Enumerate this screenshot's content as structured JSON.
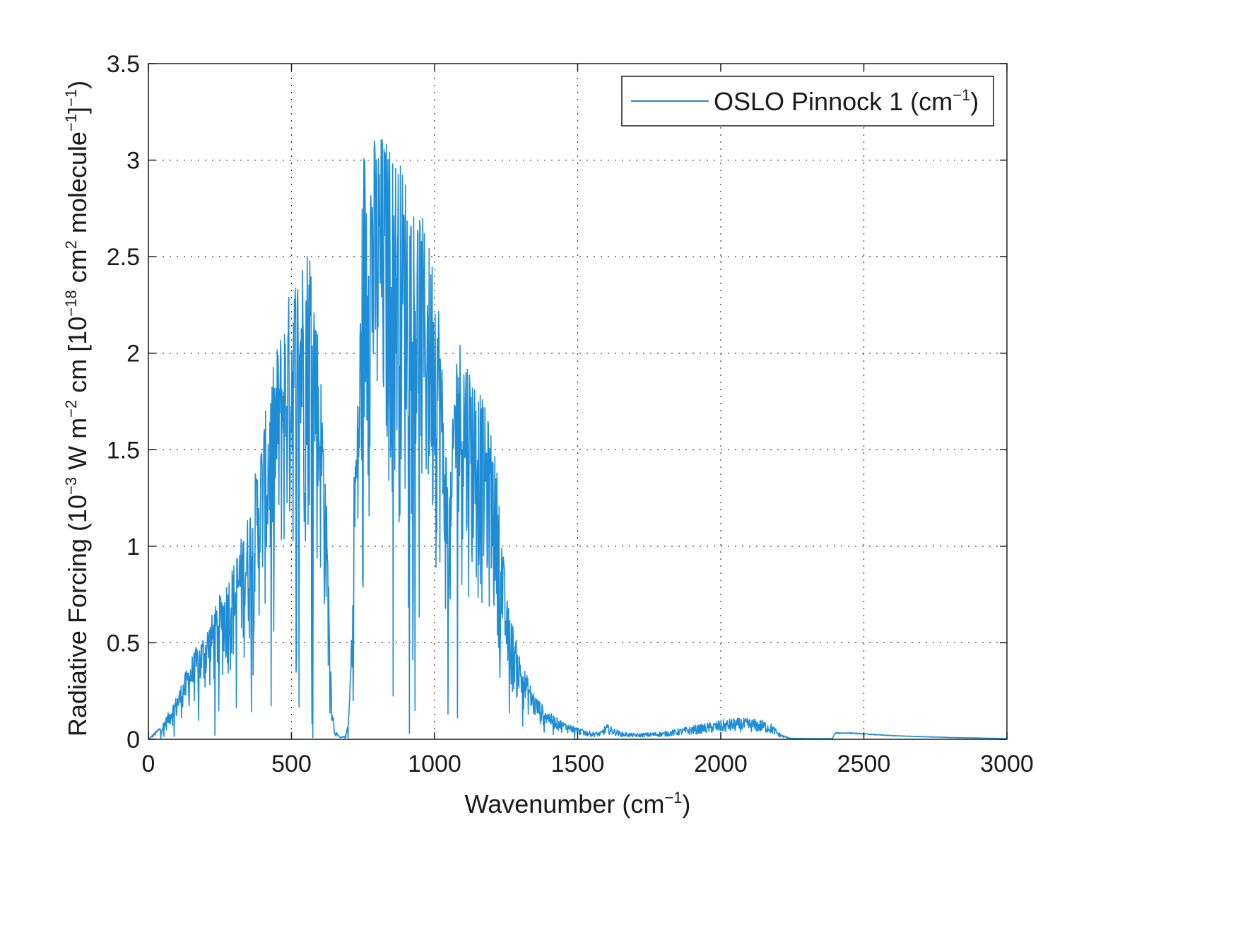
{
  "chart_data": {
    "type": "line",
    "xlabel": {
      "main": "Wavenumber (cm",
      "sup": "−1",
      "tail": ")"
    },
    "ylabel": {
      "parts": [
        {
          "t": "Radiative Forcing (10",
          "sup": false
        },
        {
          "t": "−3",
          "sup": true
        },
        {
          "t": " W m",
          "sup": false
        },
        {
          "t": "−2",
          "sup": true
        },
        {
          "t": " cm [10",
          "sup": false
        },
        {
          "t": "−18",
          "sup": true
        },
        {
          "t": " cm",
          "sup": false
        },
        {
          "t": "2",
          "sup": true
        },
        {
          "t": " molecule",
          "sup": false
        },
        {
          "t": "−1",
          "sup": true
        },
        {
          "t": "]",
          "sup": false
        },
        {
          "t": "−1",
          "sup": true
        },
        {
          "t": ")",
          "sup": false
        }
      ]
    },
    "xlim": [
      0,
      3000
    ],
    "ylim": [
      0,
      3.5
    ],
    "xticks": [
      0,
      500,
      1000,
      1500,
      2000,
      2500,
      3000
    ],
    "xtick_labels": [
      "0",
      "500",
      "1000",
      "1500",
      "2000",
      "2500",
      "3000"
    ],
    "yticks": [
      0,
      0.5,
      1,
      1.5,
      2,
      2.5,
      3,
      3.5
    ],
    "ytick_labels": [
      "0",
      "0.5",
      "1",
      "1.5",
      "2",
      "2.5",
      "3",
      "3.5"
    ],
    "grid": true,
    "legend_position": "top-right",
    "series": [
      {
        "name": {
          "main": "OSLO Pinnock 1 (cm",
          "sup": "−1",
          "tail": ")"
        },
        "color": "#1f8dd6",
        "envelope_x": [
          0,
          50,
          100,
          150,
          200,
          250,
          300,
          350,
          400,
          450,
          500,
          550,
          570,
          590,
          610,
          620,
          630,
          640,
          650,
          670,
          690,
          700,
          710,
          720,
          730,
          740,
          750,
          770,
          800,
          820,
          850,
          900,
          950,
          980,
          1000,
          1020,
          1030,
          1040,
          1050,
          1060,
          1070,
          1080,
          1100,
          1150,
          1200,
          1220,
          1230,
          1250,
          1300,
          1350,
          1400,
          1450,
          1500,
          1550,
          1580,
          1600,
          1650,
          1700,
          1800,
          1900,
          2000,
          2050,
          2100,
          2150,
          2180,
          2200,
          2220,
          2250,
          2300,
          2390,
          2400,
          2450,
          2500,
          2600,
          2800,
          3000
        ],
        "envelope_y": [
          0,
          0.08,
          0.23,
          0.43,
          0.57,
          0.75,
          0.93,
          1.18,
          1.62,
          2.05,
          2.38,
          2.58,
          2.65,
          2.2,
          1.75,
          1.35,
          0.85,
          0.25,
          0.05,
          0.01,
          0.02,
          0.12,
          0.55,
          1.55,
          1.75,
          2.25,
          3.1,
          3.12,
          3.14,
          3.15,
          3.08,
          2.95,
          2.75,
          2.58,
          2.52,
          2.22,
          1.82,
          1.55,
          1.3,
          1.45,
          2.05,
          2.12,
          2.08,
          1.85,
          1.6,
          1.38,
          1.2,
          0.75,
          0.42,
          0.23,
          0.14,
          0.09,
          0.06,
          0.04,
          0.04,
          0.08,
          0.04,
          0.03,
          0.04,
          0.07,
          0.1,
          0.11,
          0.11,
          0.1,
          0.08,
          0.04,
          0.02,
          0.005,
          0.004,
          0.004,
          0.035,
          0.035,
          0.03,
          0.02,
          0.01,
          0.004
        ]
      }
    ]
  }
}
